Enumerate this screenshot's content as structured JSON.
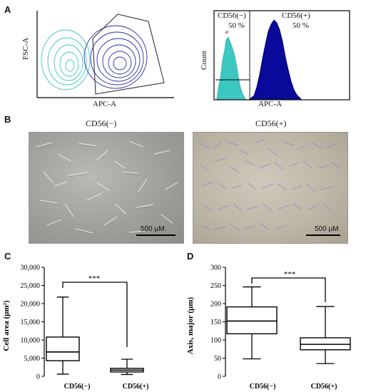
{
  "panels": {
    "a": "A",
    "b": "B",
    "c": "C",
    "d": "D"
  },
  "panel_a": {
    "scatter": {
      "ylabel": "FSC-A",
      "xlabel": "APC-A"
    },
    "histogram": {
      "ylabel": "Count",
      "xlabel": "APC-A",
      "left_gate_label": "CD56(−)",
      "left_gate_pct": "50 %",
      "right_gate_label": "CD56(+)",
      "right_gate_pct": "50 %",
      "small_mark": "a"
    },
    "colors": {
      "negative": "#3cc7c0",
      "positive": "#0a0a9a"
    }
  },
  "panel_b": {
    "left_title": "CD56(−)",
    "right_title": "CD56(+)",
    "left_scale": "500 µM",
    "right_scale": "500 µM"
  },
  "chart_data": [
    {
      "type": "box",
      "panel": "C",
      "ylabel": "Cell area (µm²)",
      "categories": [
        "CD56(−)",
        "CD56(+)"
      ],
      "yticks": [
        "0",
        "5,000",
        "10,000",
        "15,000",
        "20,000",
        "25,000",
        "30,000"
      ],
      "ylim": [
        0,
        30000
      ],
      "boxes": [
        {
          "min": 600,
          "q1": 4300,
          "median": 6700,
          "q3": 10800,
          "max": 21800
        },
        {
          "min": 500,
          "q1": 1200,
          "median": 1700,
          "q3": 2200,
          "max": 4700
        }
      ],
      "significance": "***"
    },
    {
      "type": "box",
      "panel": "D",
      "ylabel": "Axis, major (µm)",
      "categories": [
        "CD56(−)",
        "CD56(+)"
      ],
      "yticks": [
        "0",
        "50",
        "100",
        "150",
        "200",
        "250",
        "300"
      ],
      "ylim": [
        0,
        300
      ],
      "boxes": [
        {
          "min": 48,
          "q1": 117,
          "median": 152,
          "q3": 191,
          "max": 246
        },
        {
          "min": 35,
          "q1": 73,
          "median": 88,
          "q3": 106,
          "max": 192
        }
      ],
      "significance": "***"
    }
  ]
}
